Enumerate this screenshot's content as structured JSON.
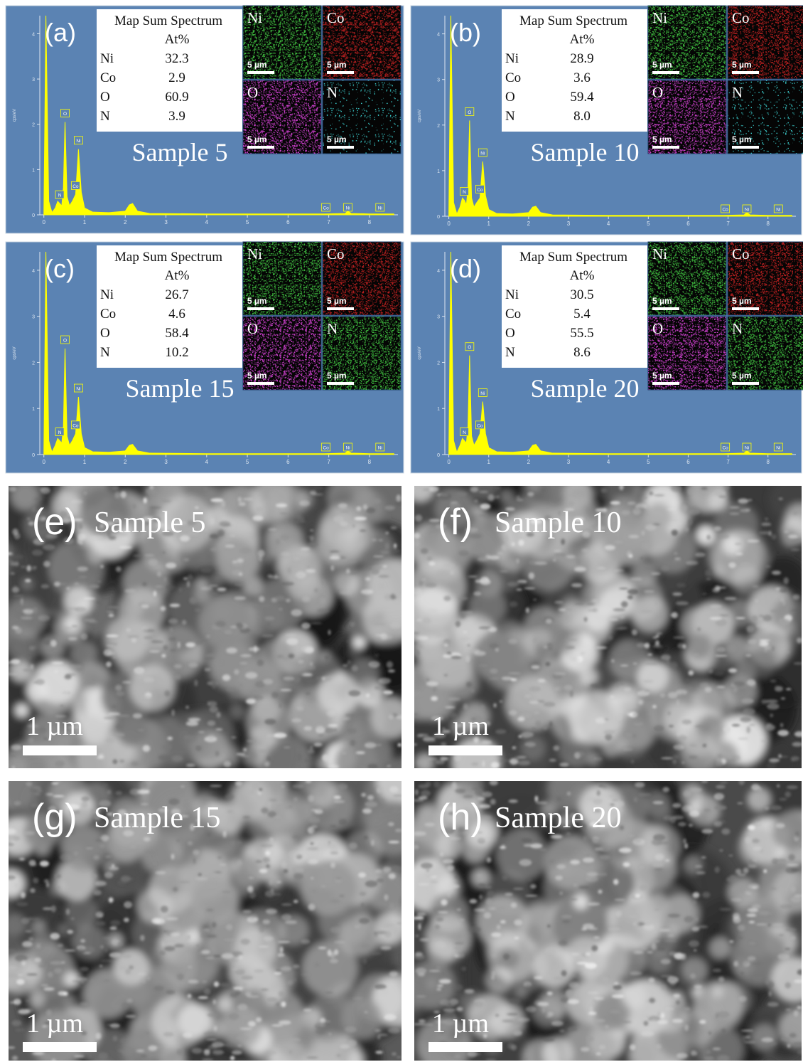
{
  "eds": {
    "table_title": "Map Sum Spectrum",
    "column_header": "At%",
    "map_scale": "5 µm",
    "spectrum": {
      "x": [
        0,
        0.05,
        0.12,
        0.2,
        0.28,
        0.34,
        0.39,
        0.44,
        0.48,
        0.52,
        0.57,
        0.63,
        0.7,
        0.78,
        0.85,
        0.92,
        1.0,
        1.2,
        1.6,
        2.0,
        2.1,
        2.18,
        2.3,
        2.6,
        4.0,
        6.9,
        7.4,
        7.47,
        7.55,
        8.0,
        8.6
      ],
      "xlim": [
        -0.1,
        8.7
      ],
      "ylim": [
        0,
        4.4
      ],
      "xticks": [
        0,
        1,
        2,
        3,
        4,
        5,
        6,
        7,
        8
      ],
      "yticks": [
        0,
        1,
        2,
        3,
        4
      ],
      "y_label": "cps/eV",
      "color": "#ffff00",
      "peak_labels": [
        {
          "text": "N",
          "x": 0.39
        },
        {
          "text": "O",
          "x": 0.52
        },
        {
          "text": "Co",
          "x": 0.78
        },
        {
          "text": "Ni",
          "x": 0.85
        },
        {
          "text": "Co",
          "x": 6.93
        },
        {
          "text": "Ni",
          "x": 7.47
        },
        {
          "text": "Ni",
          "x": 8.26
        }
      ]
    },
    "panels": [
      {
        "label": "(a)",
        "sample": "Sample 5",
        "rows": [
          {
            "element": "Ni",
            "at": "32.3"
          },
          {
            "element": "Co",
            "at": "2.9"
          },
          {
            "element": "O",
            "at": "60.9"
          },
          {
            "element": "N",
            "at": "3.9"
          }
        ],
        "maps": [
          {
            "element": "Ni",
            "color": "#3fbf3f"
          },
          {
            "element": "Co",
            "color": "#c02020"
          },
          {
            "element": "O",
            "color": "#d040d0"
          },
          {
            "element": "N",
            "color": "#40e0e0"
          }
        ],
        "values": [
          0,
          4.4,
          0.3,
          0.05,
          0.15,
          0.3,
          0.25,
          0.2,
          0.6,
          2.05,
          0.4,
          0.2,
          0.3,
          0.45,
          1.45,
          0.5,
          0.15,
          0.06,
          0.05,
          0.08,
          0.22,
          0.25,
          0.08,
          0.03,
          0.02,
          0.02,
          0.03,
          0.08,
          0.03,
          0.02,
          0.02
        ]
      },
      {
        "label": "(b)",
        "sample": "Sample 10",
        "rows": [
          {
            "element": "Ni",
            "at": "28.9"
          },
          {
            "element": "Co",
            "at": "3.6"
          },
          {
            "element": "O",
            "at": "59.4"
          },
          {
            "element": "N",
            "at": "8.0"
          }
        ],
        "maps": [
          {
            "element": "Ni",
            "color": "#3fbf3f"
          },
          {
            "element": "Co",
            "color": "#c02020"
          },
          {
            "element": "O",
            "color": "#d040d0"
          },
          {
            "element": "N",
            "color": "#40e0e0"
          }
        ],
        "values": [
          0,
          4.4,
          0.3,
          0.05,
          0.2,
          0.4,
          0.35,
          0.25,
          0.6,
          2.1,
          0.4,
          0.2,
          0.3,
          0.4,
          1.2,
          0.45,
          0.15,
          0.06,
          0.05,
          0.08,
          0.2,
          0.22,
          0.08,
          0.03,
          0.02,
          0.02,
          0.03,
          0.08,
          0.03,
          0.02,
          0.02
        ]
      },
      {
        "label": "(c)",
        "sample": "Sample 15",
        "rows": [
          {
            "element": "Ni",
            "at": "26.7"
          },
          {
            "element": "Co",
            "at": "4.6"
          },
          {
            "element": "O",
            "at": "58.4"
          },
          {
            "element": "N",
            "at": "10.2"
          }
        ],
        "maps": [
          {
            "element": "Ni",
            "color": "#3fbf3f"
          },
          {
            "element": "Co",
            "color": "#c02020"
          },
          {
            "element": "O",
            "color": "#d040d0"
          },
          {
            "element": "N",
            "color": "#3fbf3f"
          }
        ],
        "values": [
          0,
          4.4,
          0.3,
          0.05,
          0.2,
          0.35,
          0.3,
          0.25,
          0.6,
          2.3,
          0.4,
          0.2,
          0.3,
          0.45,
          1.25,
          0.45,
          0.15,
          0.06,
          0.05,
          0.08,
          0.2,
          0.22,
          0.08,
          0.03,
          0.02,
          0.02,
          0.03,
          0.08,
          0.03,
          0.02,
          0.02
        ]
      },
      {
        "label": "(d)",
        "sample": "Sample 20",
        "rows": [
          {
            "element": "Ni",
            "at": "30.5"
          },
          {
            "element": "Co",
            "at": "5.4"
          },
          {
            "element": "O",
            "at": "55.5"
          },
          {
            "element": "N",
            "at": "8.6"
          }
        ],
        "maps": [
          {
            "element": "Ni",
            "color": "#3fbf3f"
          },
          {
            "element": "Co",
            "color": "#c02020"
          },
          {
            "element": "O",
            "color": "#d040d0"
          },
          {
            "element": "N",
            "color": "#3fbf3f"
          }
        ],
        "values": [
          0,
          4.4,
          0.3,
          0.05,
          0.2,
          0.35,
          0.3,
          0.25,
          0.6,
          2.15,
          0.4,
          0.2,
          0.3,
          0.45,
          1.15,
          0.45,
          0.15,
          0.06,
          0.05,
          0.08,
          0.2,
          0.22,
          0.08,
          0.03,
          0.02,
          0.02,
          0.03,
          0.08,
          0.03,
          0.02,
          0.02
        ]
      }
    ]
  },
  "sem": {
    "scale": "1 µm",
    "panels": [
      {
        "label": "(e)",
        "sample": "Sample 5"
      },
      {
        "label": "(f)",
        "sample": "Sample 10"
      },
      {
        "label": "(g)",
        "sample": "Sample 15"
      },
      {
        "label": "(h)",
        "sample": "Sample 20"
      }
    ]
  }
}
